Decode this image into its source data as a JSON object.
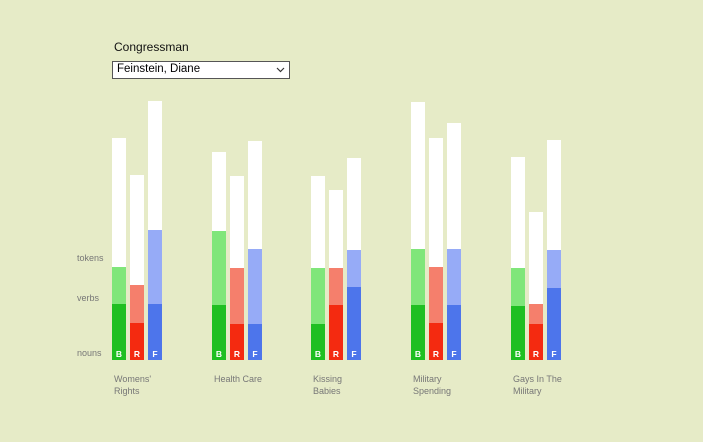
{
  "selector": {
    "label": "Congressman",
    "selected": "Feinstein, Diane"
  },
  "colors": {
    "background": "#e6ebc7",
    "B": {
      "tokens": "#ffffff",
      "verbs": "#80e67a",
      "nouns": "#1fbf22"
    },
    "R": {
      "tokens": "#ffffff",
      "verbs": "#f57f6c",
      "nouns": "#f42a10"
    },
    "F": {
      "tokens": "#ffffff",
      "verbs": "#96abf7",
      "nouns": "#4d75eb"
    }
  },
  "chart_data": {
    "type": "bar",
    "stacked": true,
    "row_labels": [
      "tokens",
      "verbs",
      "nouns"
    ],
    "series_letters": [
      "B",
      "R",
      "F"
    ],
    "groups": [
      {
        "label": [
          "Womens'",
          "Rights"
        ],
        "bars": [
          {
            "letter": "B",
            "nouns": 56,
            "verbs": 37,
            "tokens": 129
          },
          {
            "letter": "R",
            "nouns": 37,
            "verbs": 38,
            "tokens": 110
          },
          {
            "letter": "F",
            "nouns": 56,
            "verbs": 74,
            "tokens": 129
          }
        ]
      },
      {
        "label": [
          "Health Care"
        ],
        "bars": [
          {
            "letter": "B",
            "nouns": 55,
            "verbs": 74,
            "tokens": 79
          },
          {
            "letter": "R",
            "nouns": 36,
            "verbs": 56,
            "tokens": 92
          },
          {
            "letter": "F",
            "nouns": 36,
            "verbs": 75,
            "tokens": 108
          }
        ]
      },
      {
        "label": [
          "Kissing",
          "Babies"
        ],
        "bars": [
          {
            "letter": "B",
            "nouns": 36,
            "verbs": 56,
            "tokens": 92
          },
          {
            "letter": "R",
            "nouns": 55,
            "verbs": 37,
            "tokens": 78
          },
          {
            "letter": "F",
            "nouns": 73,
            "verbs": 37,
            "tokens": 92
          }
        ]
      },
      {
        "label": [
          "Military",
          "Spending"
        ],
        "bars": [
          {
            "letter": "B",
            "nouns": 55,
            "verbs": 56,
            "tokens": 147
          },
          {
            "letter": "R",
            "nouns": 37,
            "verbs": 56,
            "tokens": 129
          },
          {
            "letter": "F",
            "nouns": 55,
            "verbs": 56,
            "tokens": 126
          }
        ]
      },
      {
        "label": [
          "Gays In The",
          "Military"
        ],
        "bars": [
          {
            "letter": "B",
            "nouns": 54,
            "verbs": 38,
            "tokens": 111
          },
          {
            "letter": "R",
            "nouns": 36,
            "verbs": 20,
            "tokens": 92
          },
          {
            "letter": "F",
            "nouns": 72,
            "verbs": 38,
            "tokens": 110
          }
        ]
      }
    ]
  }
}
